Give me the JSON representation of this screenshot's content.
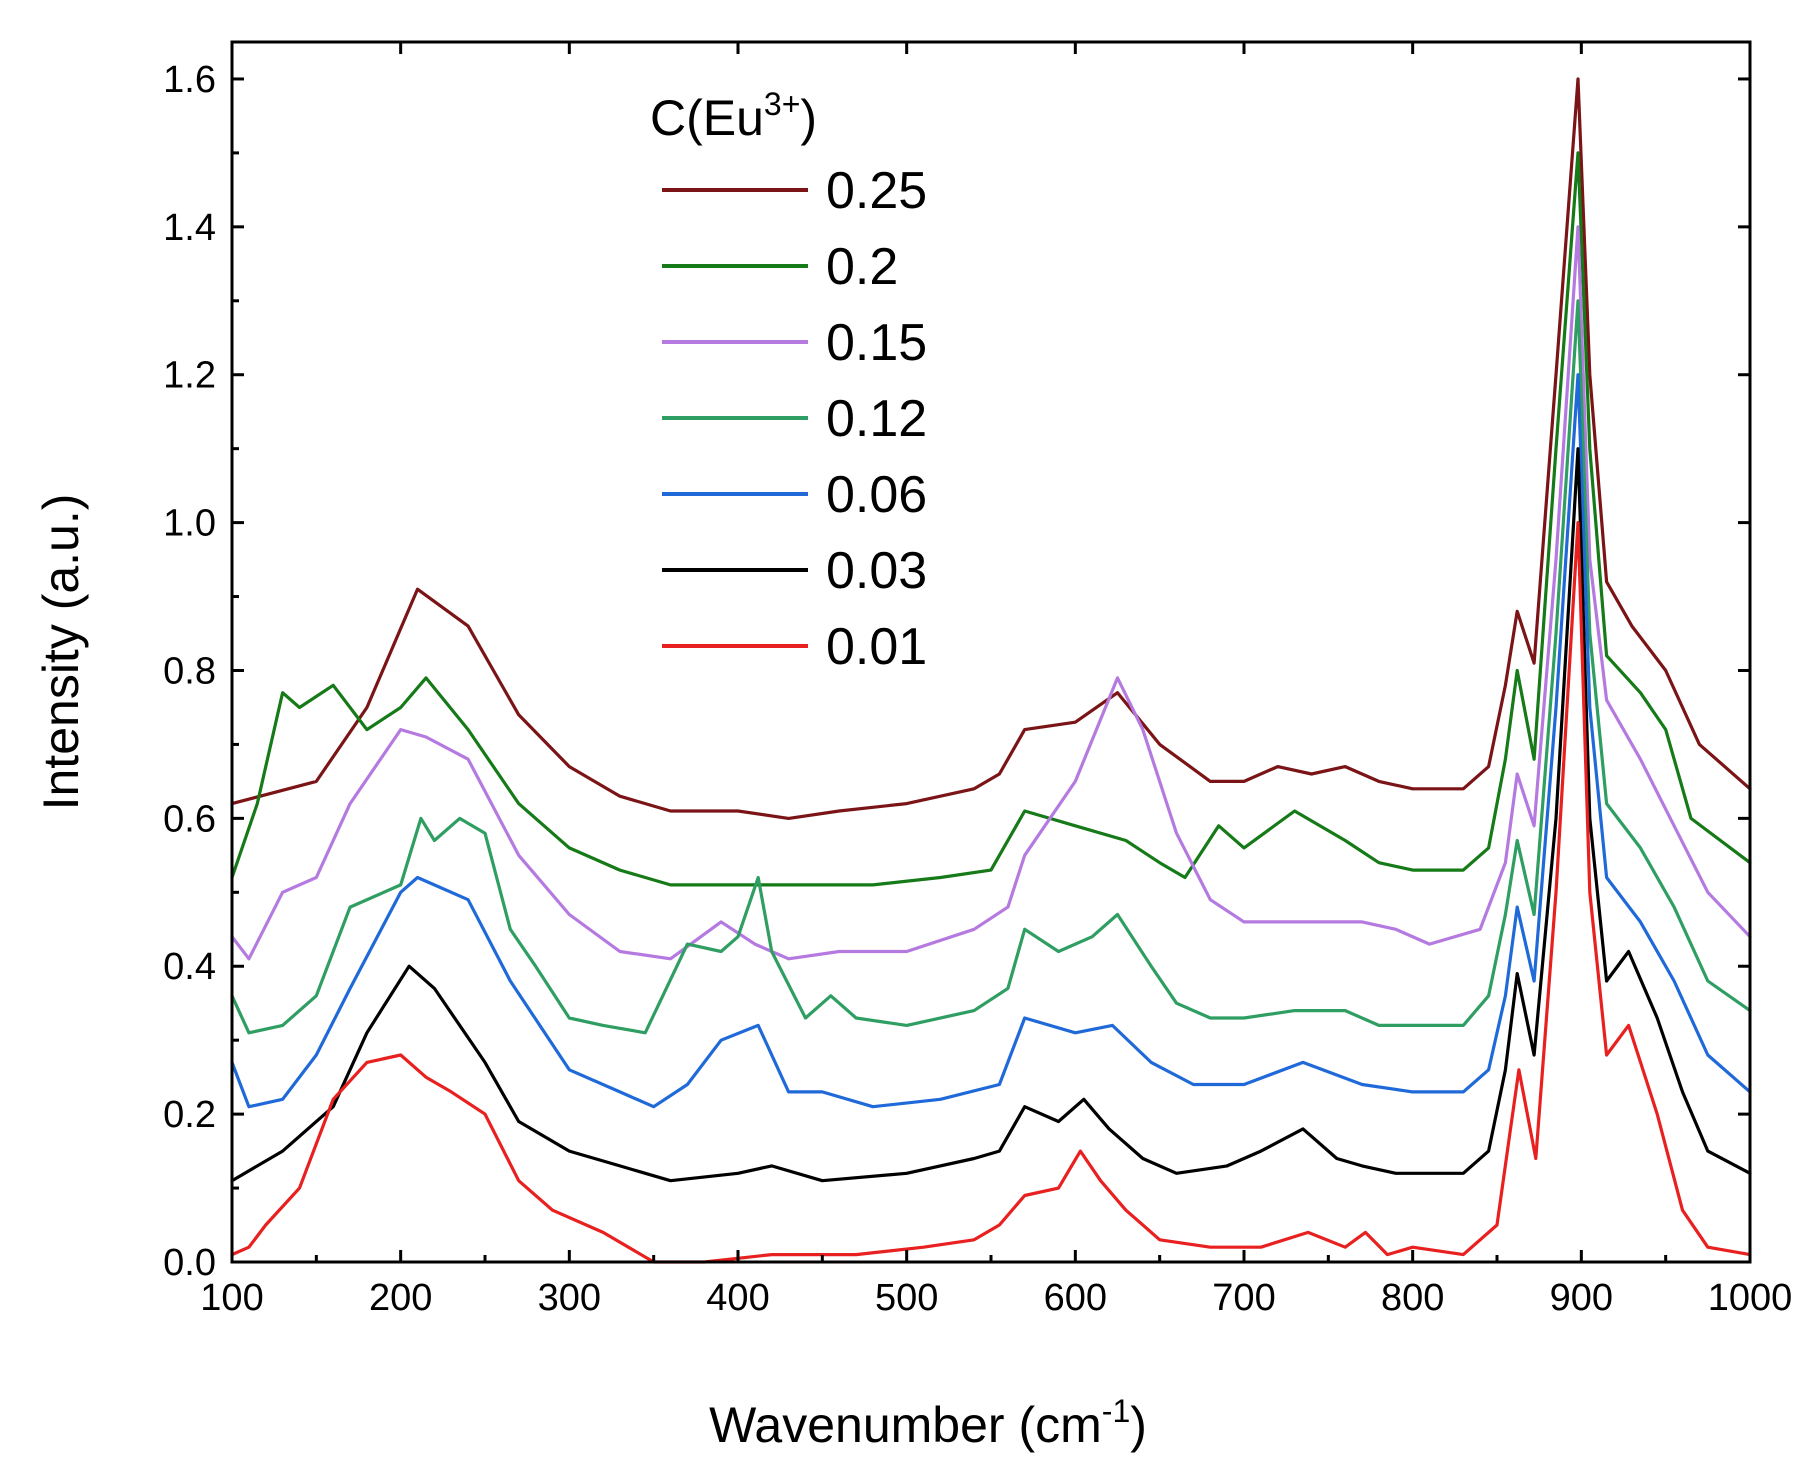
{
  "chart_data": {
    "type": "line",
    "title": "",
    "xlabel": "Wavenumber (cm",
    "xlabel_sup": "-1",
    "xlabel_close": ")",
    "ylabel": "Intensity (a.u.)",
    "xlim": [
      100,
      1000
    ],
    "ylim": [
      0.0,
      1.65
    ],
    "xticks": [
      100,
      200,
      300,
      400,
      500,
      600,
      700,
      800,
      900,
      1000
    ],
    "xtick_labels": [
      "100",
      "200",
      "300",
      "400",
      "500",
      "600",
      "700",
      "800",
      "900",
      "1000"
    ],
    "yticks": [
      0.0,
      0.2,
      0.4,
      0.6,
      0.8,
      1.0,
      1.2,
      1.4,
      1.6
    ],
    "ytick_labels": [
      "0.0",
      "0.2",
      "0.4",
      "0.6",
      "0.8",
      "1.0",
      "1.2",
      "1.4",
      "1.6"
    ],
    "grid": false,
    "legend": {
      "title": "C(Eu",
      "title_sup": "3+",
      "title_close": ")",
      "placement": "top-left"
    },
    "series": [
      {
        "name": "0.25",
        "color": "#7B1416",
        "x": [
          100,
          150,
          180,
          210,
          240,
          270,
          300,
          330,
          360,
          400,
          430,
          460,
          500,
          540,
          555,
          570,
          600,
          625,
          650,
          680,
          700,
          720,
          740,
          760,
          780,
          800,
          830,
          845,
          855,
          862,
          872,
          885,
          898,
          905,
          915,
          930,
          950,
          970,
          1000
        ],
        "y": [
          0.62,
          0.65,
          0.75,
          0.91,
          0.86,
          0.74,
          0.67,
          0.63,
          0.61,
          0.61,
          0.6,
          0.61,
          0.62,
          0.64,
          0.66,
          0.72,
          0.73,
          0.77,
          0.7,
          0.65,
          0.65,
          0.67,
          0.66,
          0.67,
          0.65,
          0.64,
          0.64,
          0.67,
          0.78,
          0.88,
          0.81,
          1.2,
          1.6,
          1.2,
          0.92,
          0.86,
          0.8,
          0.7,
          0.64
        ]
      },
      {
        "name": "0.2",
        "color": "#157A17",
        "x": [
          100,
          115,
          130,
          140,
          160,
          180,
          200,
          215,
          240,
          270,
          300,
          330,
          360,
          400,
          440,
          480,
          520,
          550,
          570,
          600,
          630,
          650,
          665,
          685,
          700,
          730,
          760,
          780,
          800,
          830,
          845,
          855,
          862,
          872,
          885,
          898,
          905,
          915,
          935,
          950,
          965,
          1000
        ],
        "y": [
          0.52,
          0.62,
          0.77,
          0.75,
          0.78,
          0.72,
          0.75,
          0.79,
          0.72,
          0.62,
          0.56,
          0.53,
          0.51,
          0.51,
          0.51,
          0.51,
          0.52,
          0.53,
          0.61,
          0.59,
          0.57,
          0.54,
          0.52,
          0.59,
          0.56,
          0.61,
          0.57,
          0.54,
          0.53,
          0.53,
          0.56,
          0.68,
          0.8,
          0.68,
          1.1,
          1.5,
          1.1,
          0.82,
          0.77,
          0.72,
          0.6,
          0.54
        ]
      },
      {
        "name": "0.15",
        "color": "#B57AE0",
        "x": [
          100,
          110,
          130,
          150,
          170,
          200,
          215,
          240,
          270,
          300,
          330,
          360,
          390,
          410,
          430,
          460,
          500,
          540,
          560,
          570,
          600,
          625,
          640,
          660,
          680,
          700,
          720,
          740,
          770,
          790,
          810,
          840,
          855,
          862,
          872,
          885,
          898,
          905,
          915,
          935,
          955,
          975,
          1000
        ],
        "y": [
          0.44,
          0.41,
          0.5,
          0.52,
          0.62,
          0.72,
          0.71,
          0.68,
          0.55,
          0.47,
          0.42,
          0.41,
          0.46,
          0.43,
          0.41,
          0.42,
          0.42,
          0.45,
          0.48,
          0.55,
          0.65,
          0.79,
          0.72,
          0.58,
          0.49,
          0.46,
          0.46,
          0.46,
          0.46,
          0.45,
          0.43,
          0.45,
          0.54,
          0.66,
          0.59,
          0.95,
          1.4,
          0.95,
          0.76,
          0.68,
          0.59,
          0.5,
          0.44
        ]
      },
      {
        "name": "0.12",
        "color": "#2F9E62",
        "x": [
          100,
          110,
          130,
          150,
          170,
          200,
          212,
          220,
          235,
          250,
          265,
          280,
          300,
          320,
          345,
          370,
          390,
          400,
          412,
          420,
          440,
          455,
          470,
          500,
          540,
          560,
          570,
          590,
          610,
          625,
          645,
          660,
          680,
          700,
          730,
          760,
          780,
          800,
          830,
          845,
          855,
          862,
          872,
          885,
          898,
          905,
          915,
          935,
          955,
          975,
          1000
        ],
        "y": [
          0.36,
          0.31,
          0.32,
          0.36,
          0.48,
          0.51,
          0.6,
          0.57,
          0.6,
          0.58,
          0.45,
          0.4,
          0.33,
          0.32,
          0.31,
          0.43,
          0.42,
          0.44,
          0.52,
          0.42,
          0.33,
          0.36,
          0.33,
          0.32,
          0.34,
          0.37,
          0.45,
          0.42,
          0.44,
          0.47,
          0.4,
          0.35,
          0.33,
          0.33,
          0.34,
          0.34,
          0.32,
          0.32,
          0.32,
          0.36,
          0.47,
          0.57,
          0.47,
          0.85,
          1.3,
          0.85,
          0.62,
          0.56,
          0.48,
          0.38,
          0.34
        ]
      },
      {
        "name": "0.06",
        "color": "#1F6AD8",
        "x": [
          100,
          110,
          130,
          150,
          170,
          200,
          210,
          240,
          265,
          300,
          330,
          350,
          370,
          390,
          412,
          430,
          450,
          480,
          520,
          555,
          570,
          600,
          622,
          645,
          670,
          700,
          735,
          770,
          800,
          830,
          845,
          855,
          862,
          872,
          885,
          898,
          905,
          915,
          935,
          955,
          975,
          1000
        ],
        "y": [
          0.27,
          0.21,
          0.22,
          0.28,
          0.37,
          0.5,
          0.52,
          0.49,
          0.38,
          0.26,
          0.23,
          0.21,
          0.24,
          0.3,
          0.32,
          0.23,
          0.23,
          0.21,
          0.22,
          0.24,
          0.33,
          0.31,
          0.32,
          0.27,
          0.24,
          0.24,
          0.27,
          0.24,
          0.23,
          0.23,
          0.26,
          0.36,
          0.48,
          0.38,
          0.75,
          1.2,
          0.75,
          0.52,
          0.46,
          0.38,
          0.28,
          0.23
        ]
      },
      {
        "name": "0.03",
        "color": "#000000",
        "x": [
          100,
          130,
          160,
          180,
          205,
          220,
          250,
          270,
          300,
          330,
          360,
          400,
          420,
          450,
          500,
          540,
          555,
          570,
          590,
          605,
          620,
          640,
          660,
          690,
          710,
          735,
          755,
          770,
          790,
          810,
          830,
          845,
          855,
          862,
          872,
          885,
          898,
          905,
          915,
          928,
          945,
          960,
          975,
          1000
        ],
        "y": [
          0.11,
          0.15,
          0.21,
          0.31,
          0.4,
          0.37,
          0.27,
          0.19,
          0.15,
          0.13,
          0.11,
          0.12,
          0.13,
          0.11,
          0.12,
          0.14,
          0.15,
          0.21,
          0.19,
          0.22,
          0.18,
          0.14,
          0.12,
          0.13,
          0.15,
          0.18,
          0.14,
          0.13,
          0.12,
          0.12,
          0.12,
          0.15,
          0.26,
          0.39,
          0.28,
          0.6,
          1.1,
          0.6,
          0.38,
          0.42,
          0.33,
          0.23,
          0.15,
          0.12
        ]
      },
      {
        "name": "0.01",
        "color": "#E82020",
        "x": [
          100,
          110,
          120,
          140,
          160,
          180,
          200,
          215,
          230,
          250,
          270,
          290,
          320,
          350,
          380,
          420,
          470,
          510,
          540,
          555,
          570,
          590,
          603,
          615,
          630,
          650,
          680,
          710,
          738,
          760,
          772,
          785,
          800,
          830,
          850,
          858,
          863,
          873,
          885,
          898,
          905,
          915,
          928,
          945,
          960,
          975,
          1000
        ],
        "y": [
          0.01,
          0.02,
          0.05,
          0.1,
          0.22,
          0.27,
          0.28,
          0.25,
          0.23,
          0.2,
          0.11,
          0.07,
          0.04,
          0.0,
          0.0,
          0.01,
          0.01,
          0.02,
          0.03,
          0.05,
          0.09,
          0.1,
          0.15,
          0.11,
          0.07,
          0.03,
          0.02,
          0.02,
          0.04,
          0.02,
          0.04,
          0.01,
          0.02,
          0.01,
          0.05,
          0.18,
          0.26,
          0.14,
          0.5,
          1.0,
          0.5,
          0.28,
          0.32,
          0.2,
          0.07,
          0.02,
          0.01
        ]
      }
    ]
  }
}
